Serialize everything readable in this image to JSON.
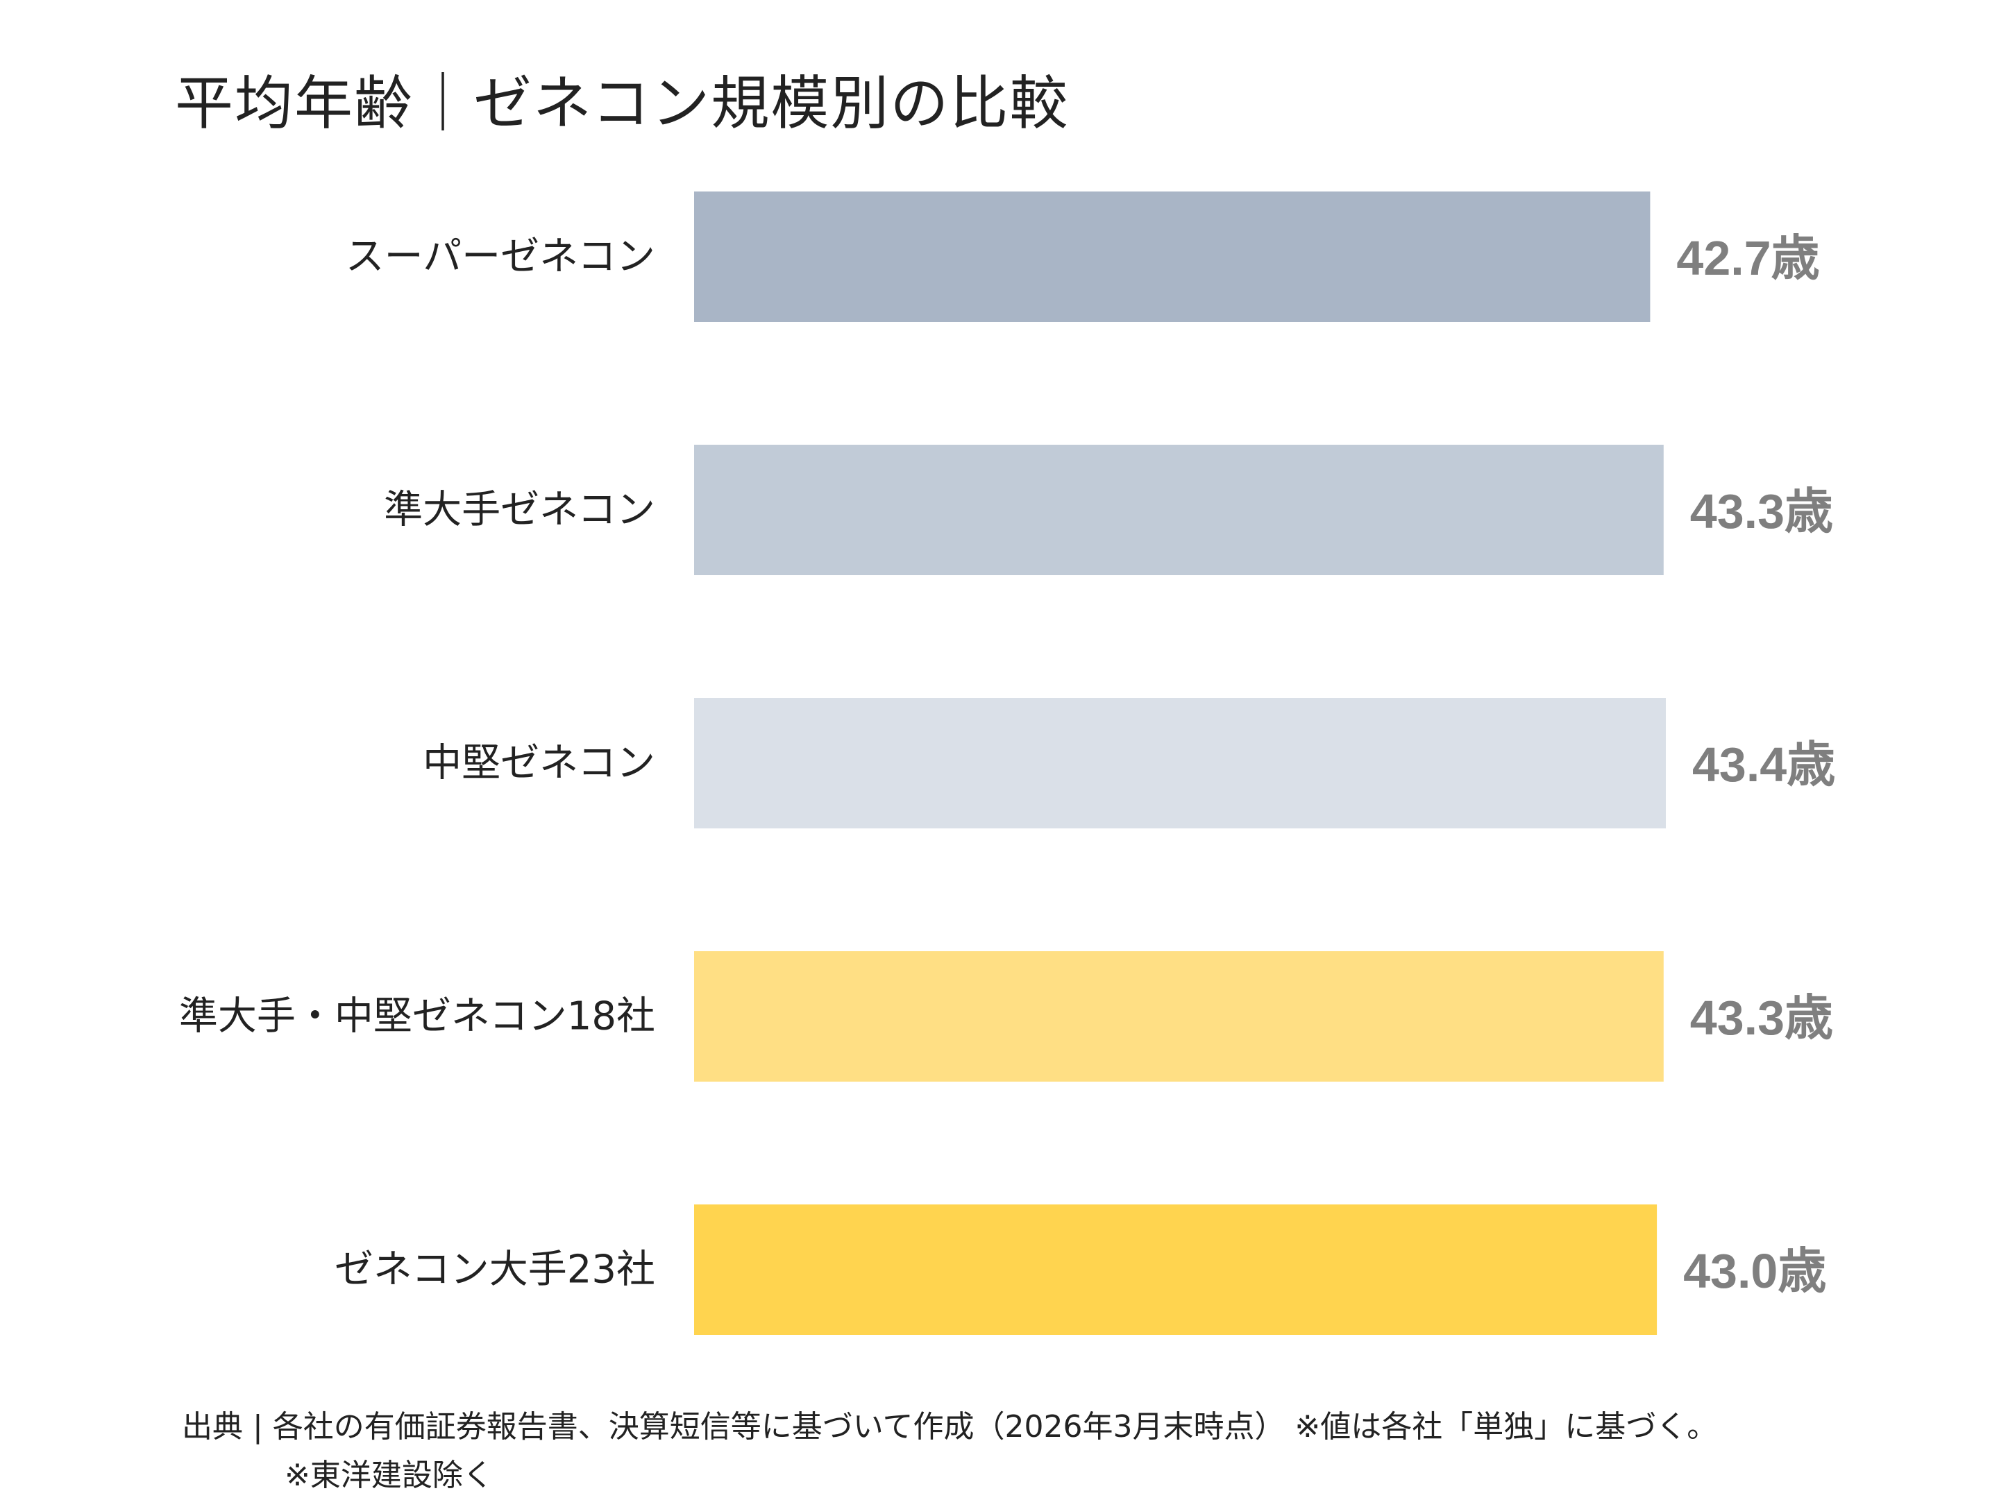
{
  "chart_data": {
    "type": "bar",
    "orientation": "horizontal",
    "title": "平均年齢｜ゼネコン規模別の比較",
    "categories": [
      "スーパーゼネコン",
      "準大手ゼネコン",
      "中堅ゼネコン",
      "準大手・中堅ゼネコン18社",
      "ゼネコン大手23社"
    ],
    "values": [
      42.7,
      43.3,
      43.4,
      43.3,
      43.0
    ],
    "value_labels": [
      "42.7歳",
      "43.3歳",
      "43.4歳",
      "43.3歳",
      "43.0歳"
    ],
    "colors": [
      "#a9b5c6",
      "#c1cbd7",
      "#dae0e8",
      "#ffdf84",
      "#ffd44f"
    ],
    "value_label_color": "#7f7f7f",
    "xlim": [
      0,
      43.4
    ],
    "grid": false,
    "legend": "none"
  },
  "footer": {
    "source_line1": "出典 | 各社の有価証券報告書、決算短信等に基づいて作成（2026年3月末時点） ※値は各社「単独」に基づく。",
    "source_line2": "※東洋建設除く"
  }
}
